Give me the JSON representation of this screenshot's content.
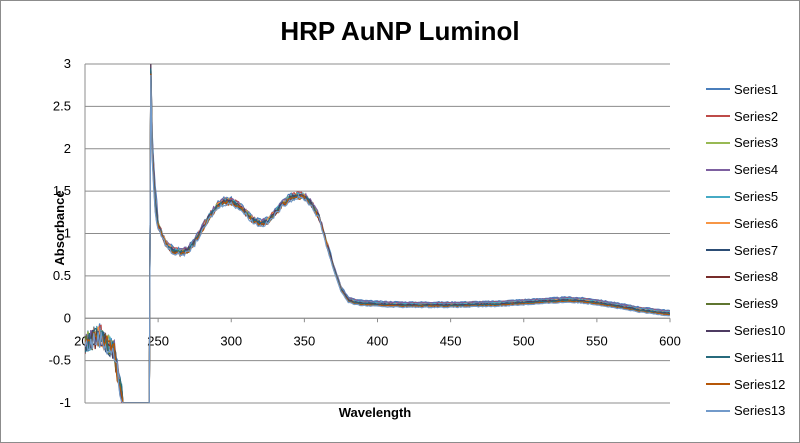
{
  "chart_data": {
    "type": "line",
    "title": "HRP AuNP Luminol",
    "xlabel": "Wavelength",
    "ylabel": "Absorbance",
    "xlim": [
      200,
      600
    ],
    "ylim": [
      -1,
      3
    ],
    "x_ticks": [
      "200",
      "250",
      "300",
      "350",
      "400",
      "450",
      "500",
      "550",
      "600"
    ],
    "y_ticks": [
      "-1",
      "-0.5",
      "0",
      "0.5",
      "1",
      "1.5",
      "2",
      "2.5",
      "3"
    ],
    "grid": "horizontal",
    "legend_position": "right",
    "base_curve": {
      "x": [
        200,
        210,
        220,
        224,
        226,
        230,
        240,
        244,
        245,
        246,
        248,
        250,
        255,
        260,
        265,
        270,
        275,
        280,
        285,
        290,
        295,
        300,
        305,
        310,
        315,
        320,
        325,
        330,
        335,
        340,
        345,
        350,
        355,
        360,
        365,
        370,
        375,
        380,
        385,
        390,
        400,
        420,
        450,
        480,
        500,
        510,
        520,
        530,
        540,
        550,
        560,
        570,
        580,
        590,
        600
      ],
      "y": [
        -0.3,
        -0.2,
        -0.4,
        -0.8,
        -1.0,
        -1.0,
        -1.0,
        -1.0,
        3.0,
        2.0,
        1.4,
        1.1,
        0.9,
        0.8,
        0.78,
        0.8,
        0.9,
        1.05,
        1.2,
        1.32,
        1.38,
        1.38,
        1.33,
        1.25,
        1.16,
        1.12,
        1.15,
        1.25,
        1.35,
        1.42,
        1.45,
        1.44,
        1.35,
        1.2,
        0.9,
        0.6,
        0.35,
        0.22,
        0.19,
        0.18,
        0.17,
        0.16,
        0.16,
        0.17,
        0.19,
        0.2,
        0.21,
        0.22,
        0.21,
        0.19,
        0.16,
        0.13,
        0.1,
        0.08,
        0.06
      ]
    },
    "series": [
      {
        "name": "Series1",
        "color": "#4a7ebb",
        "offset": 0.03
      },
      {
        "name": "Series2",
        "color": "#be4b48",
        "offset": 0.02
      },
      {
        "name": "Series3",
        "color": "#98b954",
        "offset": 0.01
      },
      {
        "name": "Series4",
        "color": "#7d60a0",
        "offset": 0.02
      },
      {
        "name": "Series5",
        "color": "#46aac4",
        "offset": 0.01
      },
      {
        "name": "Series6",
        "color": "#f79646",
        "offset": 0.0
      },
      {
        "name": "Series7",
        "color": "#2c4d75",
        "offset": -0.01
      },
      {
        "name": "Series8",
        "color": "#772c2a",
        "offset": -0.02
      },
      {
        "name": "Series9",
        "color": "#5f7530",
        "offset": -0.01
      },
      {
        "name": "Series10",
        "color": "#4d3b62",
        "offset": 0.0
      },
      {
        "name": "Series11",
        "color": "#276a7c",
        "offset": -0.01
      },
      {
        "name": "Series12",
        "color": "#b65708",
        "offset": -0.02
      },
      {
        "name": "Series13",
        "color": "#729aca",
        "offset": -0.03
      }
    ]
  }
}
